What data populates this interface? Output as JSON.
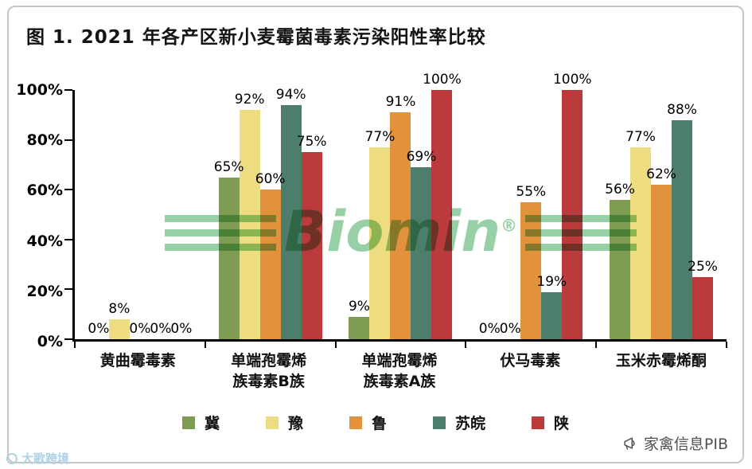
{
  "watermarks": {
    "center": {
      "text": "Biomin",
      "reg": "®",
      "color": "#2fa14d"
    },
    "bottom_right": {
      "icon": "megaphone-icon",
      "text": "家禽信息PIB"
    },
    "bottom_left": {
      "text": "大歌跨境"
    }
  },
  "chart_data": {
    "type": "bar",
    "title": "图 1. 2021 年各产区新小麦霉菌毒素污染阳性率比较",
    "categories": [
      "黄曲霉毒素",
      "单端孢霉烯\n族毒素B族",
      "单端孢霉烯\n族毒素A族",
      "伏马毒素",
      "玉米赤霉烯酮"
    ],
    "series": [
      {
        "name": "冀",
        "color": "#7f9d52",
        "values": [
          0,
          65,
          9,
          0,
          56
        ]
      },
      {
        "name": "豫",
        "color": "#eedd80",
        "values": [
          8,
          92,
          77,
          0,
          77
        ]
      },
      {
        "name": "鲁",
        "color": "#e2923d",
        "values": [
          0,
          60,
          91,
          55,
          62
        ]
      },
      {
        "name": "苏皖",
        "color": "#4d7d6b",
        "values": [
          0,
          94,
          69,
          19,
          88
        ]
      },
      {
        "name": "陕",
        "color": "#bb3b3c",
        "values": [
          0,
          75,
          100,
          100,
          25
        ]
      }
    ],
    "value_suffix": "%",
    "xlabel": "",
    "ylabel": "",
    "ylim": [
      0,
      100
    ],
    "yticks": [
      "100%",
      "80%",
      "60%",
      "40%",
      "20%",
      "0%"
    ],
    "grid": false,
    "legend_position": "bottom"
  }
}
